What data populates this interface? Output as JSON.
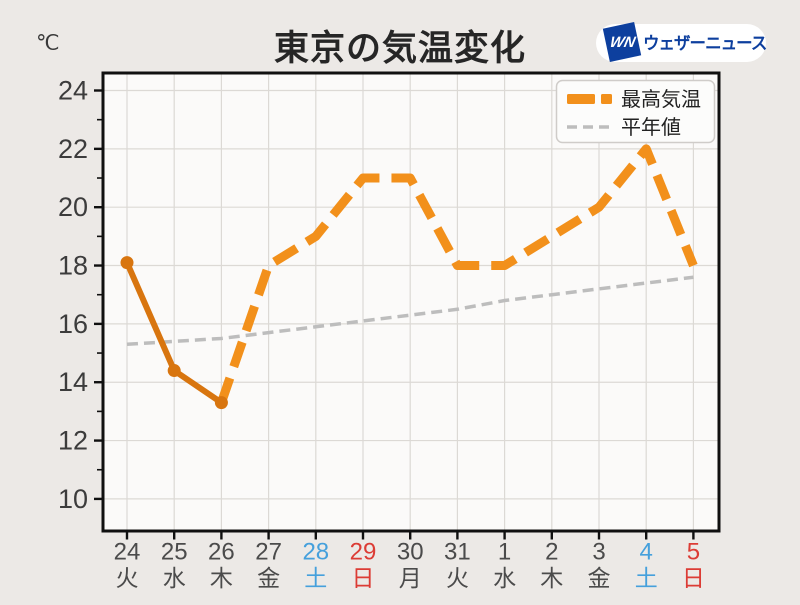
{
  "header": {
    "title": "東京の気温変化",
    "unit_label": "℃"
  },
  "logo": {
    "mark": "WN",
    "brand": "ウェザーニュース",
    "blue": "#0D3F9E",
    "pill_bg": "#FFFFFF"
  },
  "chart_data": {
    "type": "line",
    "title": "東京の気温変化",
    "xlabel": "",
    "ylabel": "℃",
    "ylim": [
      8.9,
      24.6
    ],
    "yticks_major": [
      10,
      12,
      14,
      16,
      18,
      20,
      22,
      24
    ],
    "yticks_minor": [
      11,
      13,
      15,
      17,
      19,
      21,
      23
    ],
    "grid": true,
    "legend_position": "upper right",
    "days": [
      {
        "date": "24",
        "weekday": "火",
        "type": "weekday"
      },
      {
        "date": "25",
        "weekday": "水",
        "type": "weekday"
      },
      {
        "date": "26",
        "weekday": "木",
        "type": "weekday"
      },
      {
        "date": "27",
        "weekday": "金",
        "type": "weekday"
      },
      {
        "date": "28",
        "weekday": "土",
        "type": "saturday"
      },
      {
        "date": "29",
        "weekday": "日",
        "type": "sunday"
      },
      {
        "date": "30",
        "weekday": "月",
        "type": "weekday"
      },
      {
        "date": "31",
        "weekday": "火",
        "type": "weekday"
      },
      {
        "date": "1",
        "weekday": "水",
        "type": "weekday"
      },
      {
        "date": "2",
        "weekday": "木",
        "type": "weekday"
      },
      {
        "date": "3",
        "weekday": "金",
        "type": "weekday"
      },
      {
        "date": "4",
        "weekday": "土",
        "type": "saturday"
      },
      {
        "date": "5",
        "weekday": "日",
        "type": "sunday"
      }
    ],
    "series": [
      {
        "name": "最高気温",
        "values": [
          18.1,
          14.4,
          13.3,
          18,
          19,
          21,
          21,
          18,
          18,
          19,
          20,
          22,
          18
        ],
        "solid_until_index": 2,
        "color_observed": "#D8750F",
        "color_forecast": "#F2901B",
        "style": "solid-then-dashed"
      },
      {
        "name": "平年値",
        "values": [
          15.3,
          15.4,
          15.5,
          15.7,
          15.9,
          16.1,
          16.3,
          16.5,
          16.8,
          17.0,
          17.2,
          17.4,
          17.6
        ],
        "color": "#BDBDBD",
        "style": "dashed"
      }
    ]
  },
  "colors": {
    "page_bg": "#ECE9E6",
    "plot_bg": "#FBFAF9",
    "grid": "#DCD9D5",
    "border": "#101010",
    "tick": "#101010",
    "y_label": "#3C3C3C",
    "x_label_default": "#4B4B4B",
    "x_label_saturday": "#45A0DC",
    "x_label_sunday": "#DC3C35",
    "title": "#262626",
    "legend_bg": "#FCFCFB",
    "legend_border": "#CFCCC9",
    "legend_text": "#222222"
  }
}
